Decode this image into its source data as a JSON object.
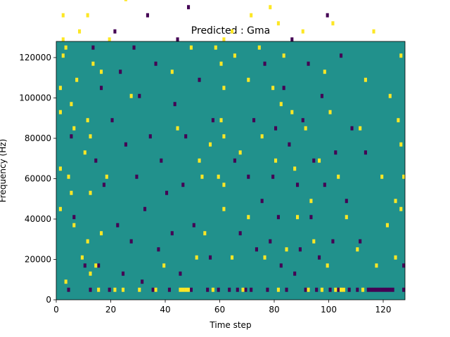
{
  "chart_data": {
    "type": "heatmap",
    "title": "Predicted : Gma",
    "xlabel": "Time step",
    "ylabel": "Frequency (Hz)",
    "xlim": [
      0,
      128
    ],
    "ylim": [
      0,
      128000
    ],
    "x_ticks": [
      "0",
      "20",
      "40",
      "60",
      "80",
      "100",
      "120"
    ],
    "y_ticks": [
      "0",
      "20000",
      "40000",
      "60000",
      "80000",
      "100000",
      "120000"
    ],
    "colormap": {
      "low": "#440154",
      "mid": "#21918c",
      "high": "#fde725"
    },
    "grid": false,
    "values_note_levels": [
      -1,
      0,
      1
    ],
    "cells": {
      "high": [
        [
          1,
          22
        ],
        [
          1,
          32
        ],
        [
          1,
          46
        ],
        [
          1,
          52
        ],
        [
          2,
          60
        ],
        [
          2,
          64
        ],
        [
          2,
          70
        ],
        [
          3,
          4
        ],
        [
          3,
          62
        ],
        [
          3,
          76
        ],
        [
          4,
          30
        ],
        [
          5,
          26
        ],
        [
          5,
          48
        ],
        [
          6,
          18
        ],
        [
          6,
          42
        ],
        [
          7,
          54
        ],
        [
          8,
          66
        ],
        [
          9,
          10
        ],
        [
          10,
          36
        ],
        [
          10,
          118
        ],
        [
          11,
          14
        ],
        [
          11,
          44
        ],
        [
          11,
          70
        ],
        [
          12,
          6
        ],
        [
          12,
          26
        ],
        [
          12,
          40
        ],
        [
          13,
          58
        ],
        [
          13,
          96
        ],
        [
          14,
          8
        ],
        [
          15,
          2
        ],
        [
          16,
          16
        ],
        [
          16,
          56
        ],
        [
          18,
          30
        ],
        [
          19,
          64
        ],
        [
          21,
          2
        ],
        [
          22,
          80
        ],
        [
          24,
          2
        ],
        [
          25,
          74
        ],
        [
          27,
          50
        ],
        [
          30,
          2
        ],
        [
          34,
          114
        ],
        [
          36,
          2
        ],
        [
          38,
          92
        ],
        [
          39,
          8
        ],
        [
          42,
          56
        ],
        [
          43,
          112
        ],
        [
          44,
          42
        ],
        [
          45,
          2
        ],
        [
          46,
          2
        ],
        [
          47,
          2
        ],
        [
          48,
          2
        ],
        [
          49,
          62
        ],
        [
          51,
          10
        ],
        [
          52,
          34
        ],
        [
          53,
          30
        ],
        [
          54,
          16
        ],
        [
          56,
          38
        ],
        [
          57,
          2
        ],
        [
          58,
          62
        ],
        [
          59,
          30
        ],
        [
          60,
          44
        ],
        [
          60,
          58
        ],
        [
          61,
          22
        ],
        [
          61,
          28
        ],
        [
          61,
          40
        ],
        [
          61,
          52
        ],
        [
          61,
          64
        ],
        [
          61,
          78
        ],
        [
          62,
          84
        ],
        [
          62,
          96
        ],
        [
          63,
          92
        ],
        [
          64,
          10
        ],
        [
          64,
          66
        ],
        [
          65,
          60
        ],
        [
          67,
          36
        ],
        [
          68,
          2
        ],
        [
          70,
          20
        ],
        [
          70,
          54
        ],
        [
          71,
          70
        ],
        [
          72,
          86
        ],
        [
          73,
          96
        ],
        [
          74,
          62
        ],
        [
          75,
          40
        ],
        [
          76,
          10
        ],
        [
          78,
          72
        ],
        [
          79,
          52
        ],
        [
          80,
          34
        ],
        [
          81,
          2
        ],
        [
          81,
          68
        ],
        [
          82,
          48
        ],
        [
          83,
          60
        ],
        [
          84,
          12
        ],
        [
          85,
          84
        ],
        [
          86,
          46
        ],
        [
          87,
          32
        ],
        [
          88,
          20
        ],
        [
          89,
          90
        ],
        [
          90,
          66
        ],
        [
          91,
          42
        ],
        [
          92,
          2
        ],
        [
          93,
          24
        ],
        [
          94,
          14
        ],
        [
          95,
          78
        ],
        [
          96,
          34
        ],
        [
          97,
          2
        ],
        [
          98,
          56
        ],
        [
          99,
          8
        ],
        [
          100,
          46
        ],
        [
          101,
          68
        ],
        [
          102,
          2
        ],
        [
          103,
          30
        ],
        [
          104,
          2
        ],
        [
          105,
          2
        ],
        [
          106,
          20
        ],
        [
          108,
          76
        ],
        [
          110,
          12
        ],
        [
          111,
          42
        ],
        [
          112,
          2
        ],
        [
          113,
          54
        ],
        [
          115,
          86
        ],
        [
          116,
          66
        ],
        [
          117,
          8
        ],
        [
          119,
          30
        ],
        [
          120,
          104
        ],
        [
          121,
          18
        ],
        [
          122,
          50
        ],
        [
          124,
          24
        ],
        [
          124,
          10
        ],
        [
          125,
          44
        ],
        [
          126,
          22
        ],
        [
          126,
          38
        ],
        [
          126,
          60
        ],
        [
          127,
          30
        ]
      ],
      "low": [
        [
          1,
          120
        ],
        [
          3,
          114
        ],
        [
          4,
          2
        ],
        [
          5,
          40
        ],
        [
          6,
          20
        ],
        [
          7,
          98
        ],
        [
          9,
          84
        ],
        [
          10,
          8
        ],
        [
          12,
          2
        ],
        [
          13,
          62
        ],
        [
          14,
          34
        ],
        [
          15,
          8
        ],
        [
          16,
          52
        ],
        [
          17,
          28
        ],
        [
          18,
          76
        ],
        [
          19,
          2
        ],
        [
          20,
          44
        ],
        [
          21,
          66
        ],
        [
          22,
          18
        ],
        [
          23,
          56
        ],
        [
          24,
          6
        ],
        [
          25,
          38
        ],
        [
          26,
          86
        ],
        [
          27,
          14
        ],
        [
          28,
          62
        ],
        [
          29,
          30
        ],
        [
          30,
          50
        ],
        [
          31,
          4
        ],
        [
          32,
          22
        ],
        [
          33,
          70
        ],
        [
          34,
          40
        ],
        [
          35,
          2
        ],
        [
          36,
          58
        ],
        [
          37,
          12
        ],
        [
          38,
          34
        ],
        [
          39,
          80
        ],
        [
          40,
          26
        ],
        [
          41,
          2
        ],
        [
          42,
          16
        ],
        [
          43,
          48
        ],
        [
          44,
          64
        ],
        [
          45,
          6
        ],
        [
          46,
          28
        ],
        [
          47,
          40
        ],
        [
          48,
          72
        ],
        [
          49,
          2
        ],
        [
          50,
          18
        ],
        [
          52,
          54
        ],
        [
          55,
          2
        ],
        [
          56,
          10
        ],
        [
          57,
          44
        ],
        [
          58,
          122
        ],
        [
          59,
          2
        ],
        [
          63,
          2
        ],
        [
          65,
          34
        ],
        [
          66,
          2
        ],
        [
          67,
          16
        ],
        [
          69,
          2
        ],
        [
          70,
          30
        ],
        [
          71,
          2
        ],
        [
          72,
          44
        ],
        [
          73,
          12
        ],
        [
          74,
          82
        ],
        [
          75,
          24
        ],
        [
          76,
          58
        ],
        [
          77,
          2
        ],
        [
          78,
          14
        ],
        [
          79,
          30
        ],
        [
          80,
          42
        ],
        [
          81,
          20
        ],
        [
          82,
          8
        ],
        [
          83,
          52
        ],
        [
          84,
          2
        ],
        [
          85,
          38
        ],
        [
          86,
          64
        ],
        [
          87,
          6
        ],
        [
          88,
          28
        ],
        [
          89,
          12
        ],
        [
          90,
          44
        ],
        [
          91,
          2
        ],
        [
          92,
          58
        ],
        [
          93,
          20
        ],
        [
          94,
          34
        ],
        [
          95,
          2
        ],
        [
          96,
          10
        ],
        [
          97,
          50
        ],
        [
          98,
          28
        ],
        [
          99,
          70
        ],
        [
          100,
          2
        ],
        [
          101,
          14
        ],
        [
          102,
          36
        ],
        [
          103,
          2
        ],
        [
          104,
          60
        ],
        [
          105,
          2
        ],
        [
          106,
          24
        ],
        [
          107,
          2
        ],
        [
          108,
          42
        ],
        [
          109,
          80
        ],
        [
          110,
          2
        ],
        [
          111,
          14
        ],
        [
          112,
          120
        ],
        [
          113,
          36
        ],
        [
          114,
          2
        ],
        [
          115,
          2
        ],
        [
          116,
          2
        ],
        [
          117,
          2
        ],
        [
          118,
          2
        ],
        [
          119,
          2
        ],
        [
          120,
          2
        ],
        [
          121,
          2
        ],
        [
          122,
          2
        ],
        [
          123,
          2
        ],
        [
          125,
          80
        ],
        [
          127,
          2
        ],
        [
          127,
          8
        ]
      ]
    }
  }
}
